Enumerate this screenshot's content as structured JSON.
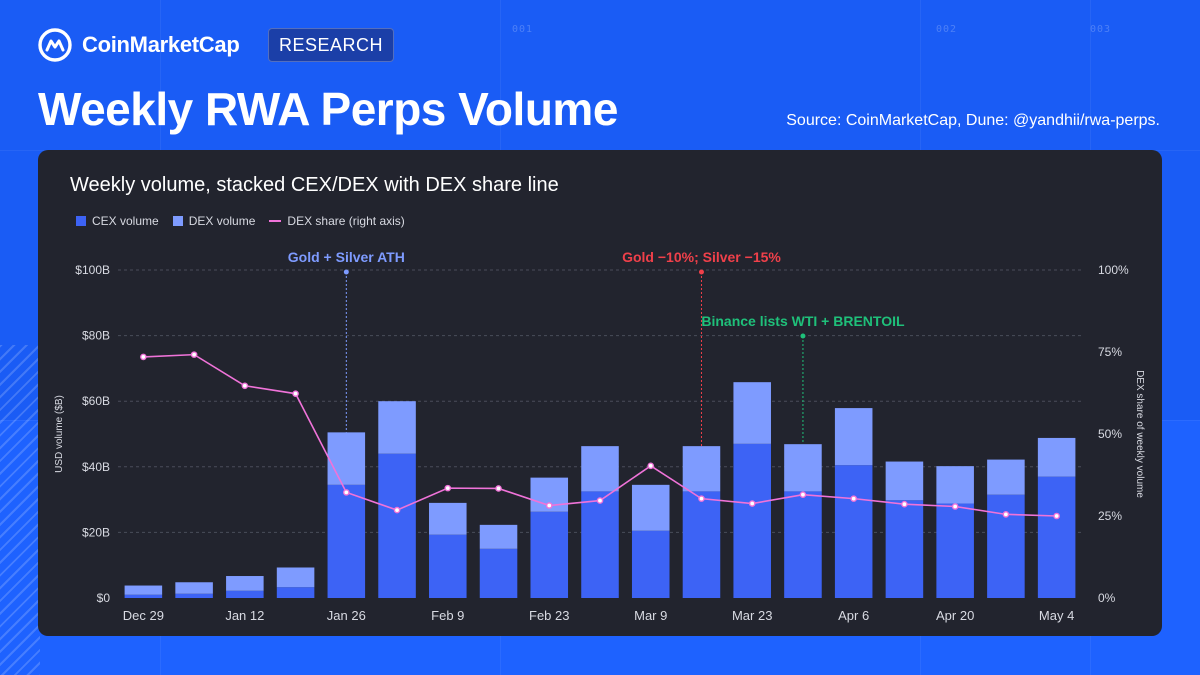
{
  "brand": {
    "name": "CoinMarketCap",
    "badge": "RESEARCH"
  },
  "header": {
    "title": "Weekly RWA Perps Volume",
    "source": "Source: CoinMarketCap, Dune: @yandhii/rwa-perps."
  },
  "background_codes": [
    "001",
    "002",
    "003"
  ],
  "colors": {
    "cex": "#3d63f5",
    "dex": "#7e9bff",
    "share": "#f073d9",
    "ath": "#7e9bff",
    "drop": "#f0404a",
    "listing": "#1fc07a"
  },
  "chart_data": {
    "type": "bar",
    "stacked": true,
    "title": "Weekly volume, stacked CEX/DEX with DEX share line",
    "ylabel": "USD volume ($B)",
    "y2label": "DEX share of weekly volume",
    "ylim": [
      0,
      100
    ],
    "y2lim": [
      0,
      100
    ],
    "yticks": [
      "$0",
      "$20B",
      "$40B",
      "$60B",
      "$80B",
      "$100B"
    ],
    "y2ticks": [
      "0%",
      "25%",
      "50%",
      "75%",
      "100%"
    ],
    "xtick_labels": [
      "Dec 29",
      "Jan 12",
      "Jan 26",
      "Feb 9",
      "Feb 23",
      "Mar 9",
      "Mar 23",
      "Apr 6",
      "Apr 20",
      "May 4"
    ],
    "categories": [
      "Dec 29",
      "Jan 5",
      "Jan 12",
      "Jan 19",
      "Jan 26",
      "Feb 2",
      "Feb 9",
      "Feb 16",
      "Feb 23",
      "Mar 2",
      "Mar 9",
      "Mar 16",
      "Mar 23",
      "Mar 30",
      "Apr 6",
      "Apr 13",
      "Apr 20",
      "Apr 27",
      "May 4"
    ],
    "series": [
      {
        "name": "CEX volume",
        "values": [
          1.0,
          1.3,
          2.2,
          3.3,
          34.5,
          44.0,
          19.3,
          15.0,
          26.3,
          32.5,
          20.5,
          32.5,
          47.0,
          32.5,
          40.5,
          29.8,
          28.8,
          31.5,
          37.0
        ]
      },
      {
        "name": "DEX volume",
        "values": [
          2.8,
          3.5,
          4.5,
          6.0,
          16.0,
          16.0,
          9.7,
          7.3,
          10.4,
          13.8,
          14.0,
          13.8,
          18.8,
          14.4,
          17.4,
          11.8,
          11.4,
          10.7,
          11.8
        ]
      }
    ],
    "share_series": {
      "name": "DEX share (right axis)",
      "values": [
        73.5,
        74.2,
        64.7,
        62.3,
        32.2,
        26.8,
        33.5,
        33.4,
        28.2,
        29.7,
        40.3,
        30.3,
        28.8,
        31.5,
        30.3,
        28.6,
        27.9,
        25.5,
        25.0
      ]
    },
    "annotations": [
      {
        "label": "Gold + Silver ATH",
        "category": "Jan 26",
        "color": "#7e9bff"
      },
      {
        "label": "Gold −10%; Silver −15%",
        "category": "Mar 16",
        "color": "#f0404a"
      },
      {
        "label": "Binance lists WTI + BRENTOIL",
        "category": "Mar 30",
        "color": "#1fc07a"
      }
    ],
    "legend": "top-left",
    "grid": true
  }
}
